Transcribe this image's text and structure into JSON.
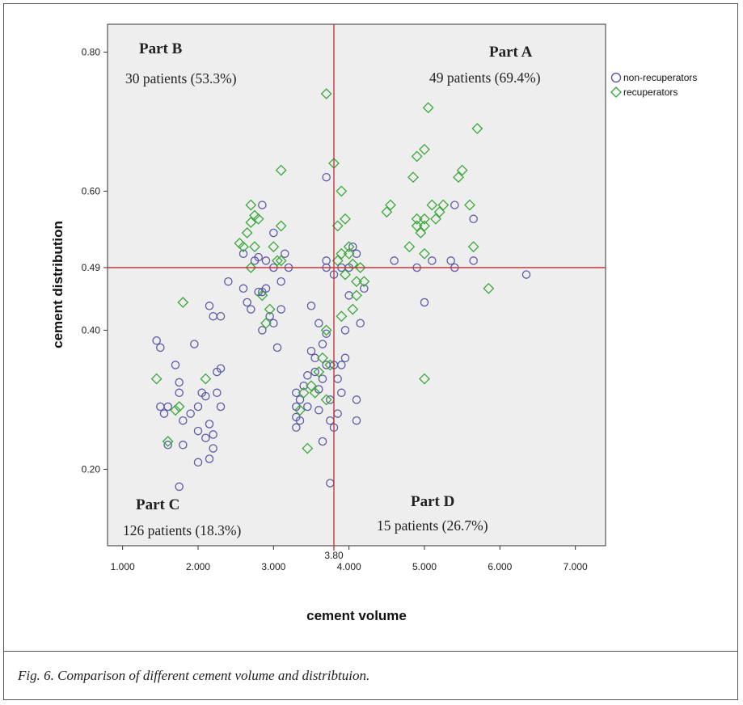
{
  "caption": "Fig. 6. Comparison of different cement volume and distribtuion.",
  "colors": {
    "non_recuperators": "#5a5aa8",
    "recuperators": "#3aa83a",
    "threshold": "#c0393b",
    "plot_bg": "#eeeeee"
  },
  "chart_data": {
    "type": "scatter",
    "xlabel": "cement volume",
    "ylabel": "cement distribution",
    "xlim": [
      0.8,
      7.4
    ],
    "ylim": [
      0.09,
      0.84
    ],
    "x_ticks": [
      "1.000",
      "2.000",
      "3.000",
      "4.000",
      "5.000",
      "6.000",
      "7.000"
    ],
    "x_tick_values": [
      1,
      2,
      3,
      4,
      5,
      6,
      7
    ],
    "y_ticks": [
      "0.20",
      "0.40",
      "0.49",
      "0.60",
      "0.80"
    ],
    "y_tick_values": [
      0.2,
      0.4,
      0.49,
      0.6,
      0.8
    ],
    "grid": false,
    "legend_position": "outside-top-right",
    "thresholds": {
      "x": 3.8,
      "x_label": "3.80",
      "y": 0.49
    },
    "quadrants": [
      {
        "title": "Part A",
        "count": "49  patients (69.4%)"
      },
      {
        "title": "Part B",
        "count": "30  patients  (53.3%)"
      },
      {
        "title": "Part C",
        "count": "126  patients  (18.3%)"
      },
      {
        "title": "Part D",
        "count": "15 patients  (26.7%)"
      }
    ],
    "series": [
      {
        "name": "non-recuperators",
        "marker": "circle",
        "points": [
          [
            1.45,
            0.385
          ],
          [
            1.5,
            0.375
          ],
          [
            1.5,
            0.29
          ],
          [
            1.55,
            0.28
          ],
          [
            1.6,
            0.235
          ],
          [
            1.6,
            0.29
          ],
          [
            1.7,
            0.35
          ],
          [
            1.75,
            0.325
          ],
          [
            1.75,
            0.31
          ],
          [
            1.8,
            0.27
          ],
          [
            1.8,
            0.235
          ],
          [
            1.75,
            0.175
          ],
          [
            1.9,
            0.28
          ],
          [
            1.95,
            0.38
          ],
          [
            2.0,
            0.29
          ],
          [
            2.0,
            0.255
          ],
          [
            2.0,
            0.21
          ],
          [
            2.05,
            0.31
          ],
          [
            2.1,
            0.305
          ],
          [
            2.1,
            0.245
          ],
          [
            2.15,
            0.265
          ],
          [
            2.15,
            0.435
          ],
          [
            2.15,
            0.215
          ],
          [
            2.2,
            0.42
          ],
          [
            2.2,
            0.25
          ],
          [
            2.25,
            0.34
          ],
          [
            2.25,
            0.31
          ],
          [
            2.2,
            0.23
          ],
          [
            2.3,
            0.42
          ],
          [
            2.3,
            0.29
          ],
          [
            2.3,
            0.345
          ],
          [
            2.4,
            0.47
          ],
          [
            2.6,
            0.51
          ],
          [
            2.6,
            0.46
          ],
          [
            2.65,
            0.44
          ],
          [
            2.7,
            0.43
          ],
          [
            2.75,
            0.5
          ],
          [
            2.8,
            0.505
          ],
          [
            2.8,
            0.455
          ],
          [
            2.85,
            0.58
          ],
          [
            2.85,
            0.455
          ],
          [
            2.85,
            0.4
          ],
          [
            2.9,
            0.5
          ],
          [
            2.9,
            0.46
          ],
          [
            2.95,
            0.42
          ],
          [
            3.0,
            0.49
          ],
          [
            3.0,
            0.41
          ],
          [
            3.0,
            0.54
          ],
          [
            3.05,
            0.375
          ],
          [
            3.1,
            0.43
          ],
          [
            3.1,
            0.47
          ],
          [
            3.15,
            0.51
          ],
          [
            3.2,
            0.49
          ],
          [
            3.3,
            0.31
          ],
          [
            3.3,
            0.29
          ],
          [
            3.3,
            0.26
          ],
          [
            3.3,
            0.275
          ],
          [
            3.35,
            0.3
          ],
          [
            3.35,
            0.27
          ],
          [
            3.4,
            0.32
          ],
          [
            3.45,
            0.335
          ],
          [
            3.45,
            0.29
          ],
          [
            3.5,
            0.435
          ],
          [
            3.5,
            0.37
          ],
          [
            3.55,
            0.36
          ],
          [
            3.55,
            0.34
          ],
          [
            3.6,
            0.41
          ],
          [
            3.6,
            0.315
          ],
          [
            3.6,
            0.285
          ],
          [
            3.65,
            0.38
          ],
          [
            3.65,
            0.33
          ],
          [
            3.65,
            0.24
          ],
          [
            3.7,
            0.5
          ],
          [
            3.7,
            0.49
          ],
          [
            3.7,
            0.395
          ],
          [
            3.7,
            0.35
          ],
          [
            3.75,
            0.3
          ],
          [
            3.75,
            0.27
          ],
          [
            3.8,
            0.48
          ],
          [
            3.8,
            0.35
          ],
          [
            3.8,
            0.26
          ],
          [
            3.85,
            0.33
          ],
          [
            3.85,
            0.28
          ],
          [
            3.9,
            0.49
          ],
          [
            3.9,
            0.31
          ],
          [
            3.9,
            0.35
          ],
          [
            3.95,
            0.36
          ],
          [
            3.95,
            0.4
          ],
          [
            4.0,
            0.49
          ],
          [
            4.0,
            0.45
          ],
          [
            4.05,
            0.52
          ],
          [
            4.1,
            0.51
          ],
          [
            4.1,
            0.3
          ],
          [
            4.1,
            0.27
          ],
          [
            4.15,
            0.41
          ],
          [
            4.2,
            0.46
          ],
          [
            3.75,
            0.18
          ],
          [
            3.7,
            0.62
          ],
          [
            4.6,
            0.5
          ],
          [
            4.9,
            0.49
          ],
          [
            5.0,
            0.44
          ],
          [
            5.1,
            0.5
          ],
          [
            5.35,
            0.5
          ],
          [
            5.4,
            0.58
          ],
          [
            5.4,
            0.49
          ],
          [
            5.65,
            0.5
          ],
          [
            5.65,
            0.56
          ],
          [
            6.35,
            0.48
          ]
        ]
      },
      {
        "name": "recuperators",
        "marker": "diamond",
        "points": [
          [
            1.45,
            0.33
          ],
          [
            1.6,
            0.24
          ],
          [
            1.7,
            0.285
          ],
          [
            1.75,
            0.29
          ],
          [
            1.8,
            0.44
          ],
          [
            2.1,
            0.33
          ],
          [
            2.55,
            0.525
          ],
          [
            2.6,
            0.52
          ],
          [
            2.65,
            0.54
          ],
          [
            2.7,
            0.58
          ],
          [
            2.7,
            0.555
          ],
          [
            2.75,
            0.565
          ],
          [
            2.8,
            0.56
          ],
          [
            2.75,
            0.52
          ],
          [
            2.7,
            0.49
          ],
          [
            2.85,
            0.45
          ],
          [
            2.9,
            0.41
          ],
          [
            2.95,
            0.43
          ],
          [
            3.0,
            0.52
          ],
          [
            3.05,
            0.5
          ],
          [
            3.1,
            0.63
          ],
          [
            3.1,
            0.55
          ],
          [
            3.1,
            0.5
          ],
          [
            3.35,
            0.285
          ],
          [
            3.4,
            0.31
          ],
          [
            3.45,
            0.23
          ],
          [
            3.5,
            0.32
          ],
          [
            3.55,
            0.31
          ],
          [
            3.6,
            0.34
          ],
          [
            3.65,
            0.36
          ],
          [
            3.7,
            0.4
          ],
          [
            3.7,
            0.3
          ],
          [
            3.75,
            0.35
          ],
          [
            3.7,
            0.74
          ],
          [
            3.8,
            0.64
          ],
          [
            3.85,
            0.5
          ],
          [
            3.85,
            0.55
          ],
          [
            3.9,
            0.6
          ],
          [
            3.9,
            0.51
          ],
          [
            3.95,
            0.56
          ],
          [
            4.0,
            0.52
          ],
          [
            4.0,
            0.51
          ],
          [
            3.95,
            0.48
          ],
          [
            4.05,
            0.495
          ],
          [
            4.1,
            0.47
          ],
          [
            4.15,
            0.49
          ],
          [
            4.2,
            0.47
          ],
          [
            4.1,
            0.45
          ],
          [
            4.05,
            0.43
          ],
          [
            3.9,
            0.42
          ],
          [
            4.5,
            0.57
          ],
          [
            4.55,
            0.58
          ],
          [
            4.8,
            0.52
          ],
          [
            4.85,
            0.62
          ],
          [
            4.9,
            0.56
          ],
          [
            4.9,
            0.55
          ],
          [
            4.95,
            0.54
          ],
          [
            5.0,
            0.56
          ],
          [
            5.0,
            0.55
          ],
          [
            5.0,
            0.66
          ],
          [
            5.05,
            0.72
          ],
          [
            5.0,
            0.51
          ],
          [
            5.1,
            0.58
          ],
          [
            5.15,
            0.56
          ],
          [
            5.2,
            0.57
          ],
          [
            5.25,
            0.58
          ],
          [
            5.45,
            0.62
          ],
          [
            5.5,
            0.63
          ],
          [
            5.6,
            0.58
          ],
          [
            5.65,
            0.52
          ],
          [
            5.7,
            0.69
          ],
          [
            5.85,
            0.46
          ],
          [
            5.0,
            0.33
          ],
          [
            4.9,
            0.65
          ]
        ]
      }
    ]
  }
}
